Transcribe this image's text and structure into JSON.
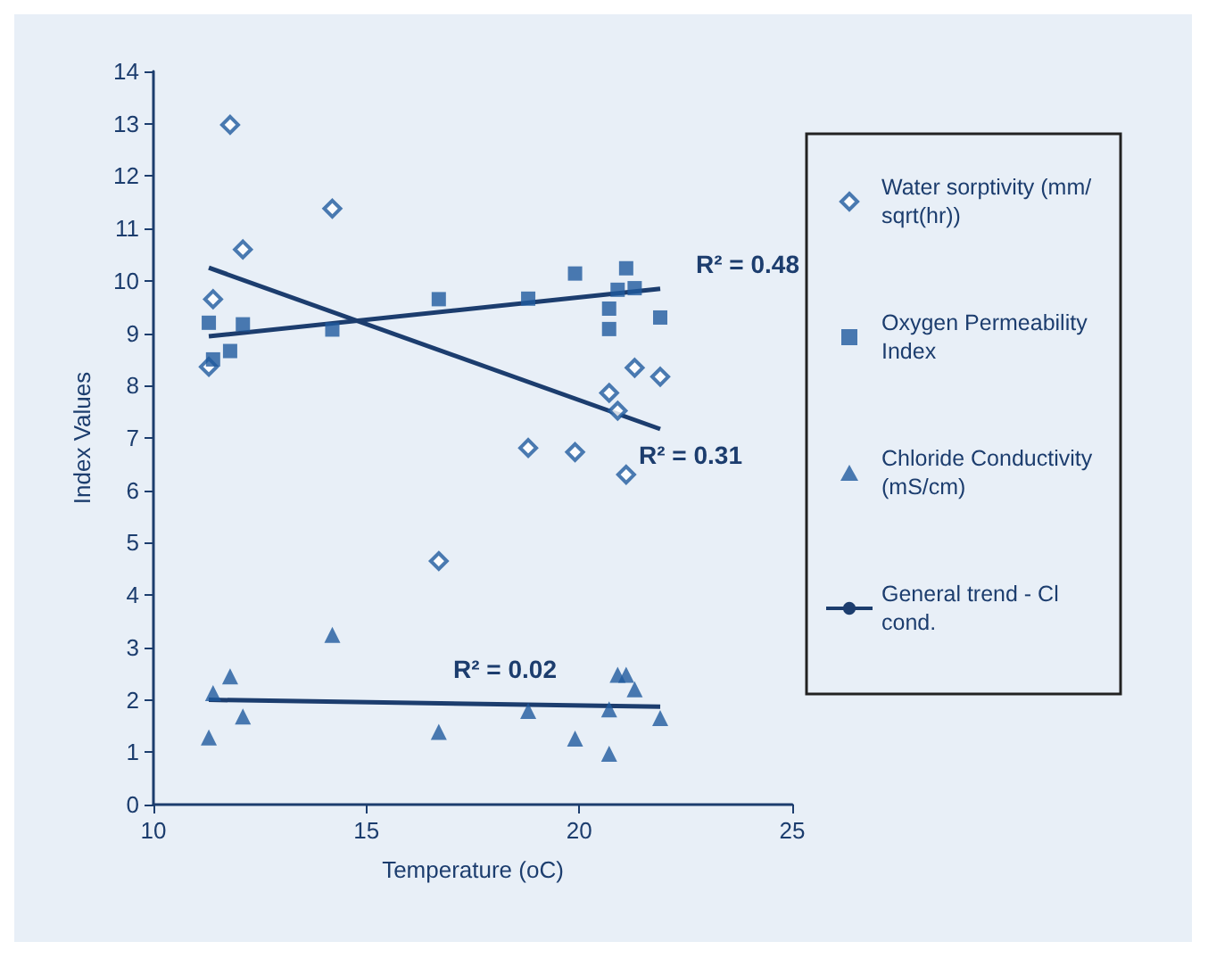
{
  "chart_data": {
    "type": "scatter",
    "xlabel": "Temperature (oC)",
    "ylabel": "Index Values",
    "xlim": [
      10,
      25
    ],
    "xticks": [
      10,
      15,
      20,
      25
    ],
    "ylim": [
      0,
      14
    ],
    "yticks": [
      0,
      1,
      2,
      3,
      4,
      5,
      6,
      7,
      8,
      9,
      10,
      11,
      12,
      13,
      14
    ],
    "grid": false,
    "legend": "right",
    "series": [
      {
        "name": "Water sorptivity (mm/sqrt(hr))",
        "marker": "diamond",
        "color": "#1f5a9e",
        "x": [
          11.3,
          11.4,
          11.8,
          12.1,
          14.2,
          16.7,
          18.8,
          19.9,
          20.7,
          20.9,
          21.1,
          21.3,
          21.9
        ],
        "values": [
          8.36,
          9.65,
          12.98,
          10.6,
          11.38,
          4.65,
          6.81,
          6.73,
          7.86,
          7.52,
          6.3,
          8.34,
          8.17
        ]
      },
      {
        "name": "Oxygen Permeability Index",
        "marker": "square",
        "color": "#1f5a9e",
        "x": [
          11.3,
          11.4,
          11.8,
          12.1,
          14.2,
          16.7,
          18.8,
          19.9,
          20.7,
          20.7,
          20.9,
          21.1,
          21.3,
          21.9
        ],
        "values": [
          9.2,
          8.5,
          8.66,
          9.17,
          9.07,
          9.65,
          9.66,
          10.14,
          9.47,
          9.08,
          9.83,
          10.24,
          9.86,
          9.3
        ]
      },
      {
        "name": "Chloride Conductivity (mS/cm)",
        "marker": "triangle",
        "color": "#1f5a9e",
        "x": [
          11.3,
          11.4,
          11.8,
          12.1,
          14.2,
          16.7,
          18.8,
          19.9,
          20.7,
          20.7,
          20.9,
          21.1,
          21.3,
          21.9
        ],
        "values": [
          1.28,
          2.13,
          2.45,
          1.68,
          3.24,
          1.39,
          1.79,
          1.26,
          1.82,
          0.97,
          2.48,
          2.48,
          2.2,
          1.65
        ]
      },
      {
        "type": "line",
        "marker": "none",
        "color": "#1c3d6e",
        "x": [
          11.3,
          21.9
        ],
        "values": [
          10.25,
          7.17
        ]
      },
      {
        "type": "line",
        "marker": "none",
        "color": "#1c3d6e",
        "x": [
          11.3,
          21.9
        ],
        "values": [
          8.94,
          9.85
        ]
      },
      {
        "name": "General trend - Cl cond.",
        "type": "line",
        "marker": "none",
        "color": "#1c3d6e",
        "x": [
          11.3,
          21.9
        ],
        "values": [
          2.0,
          1.87
        ]
      }
    ],
    "annotations": [
      "R² = 0.48",
      "R² = 0.31",
      "R² = 0.02"
    ]
  }
}
